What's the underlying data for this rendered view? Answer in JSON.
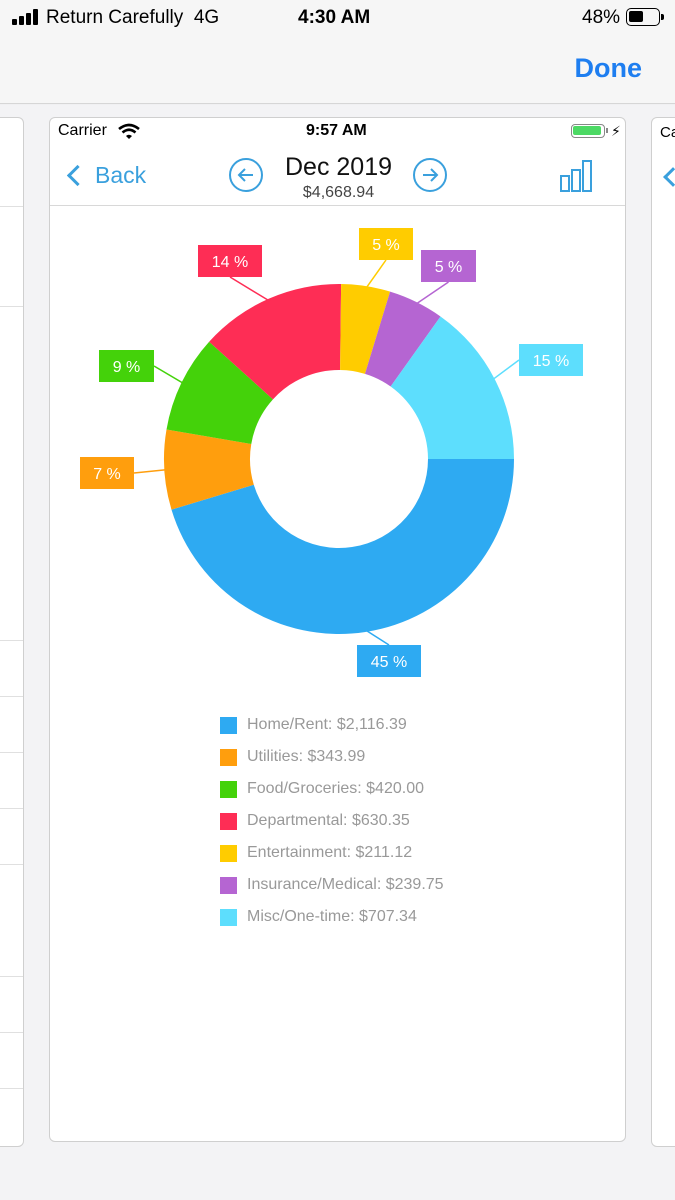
{
  "outer_status": {
    "carrier": "Return Carefully",
    "network": "4G",
    "time": "4:30 AM",
    "battery": "48%"
  },
  "outer_nav": {
    "done_label": "Done"
  },
  "peek_right": {
    "carrier": "Ca"
  },
  "inner_status": {
    "carrier": "Carrier",
    "time": "9:57 AM"
  },
  "inner_nav": {
    "back_label": "Back",
    "month": "Dec 2019",
    "total": "$4,668.94"
  },
  "icons": {
    "wifi": "wifi-icon",
    "prev": "arrow-left-circle-icon",
    "next": "arrow-right-circle-icon",
    "chart": "bar-chart-icon",
    "back": "chevron-left-icon"
  },
  "chart_data": {
    "type": "pie",
    "donut": true,
    "slices": [
      {
        "label": "Home/Rent",
        "amount": "$2,116.39",
        "value": 2116.39,
        "pct": "45 %",
        "color": "#2eaaf2"
      },
      {
        "label": "Utilities",
        "amount": "$343.99",
        "value": 343.99,
        "pct": "7 %",
        "color": "#ff9e0d"
      },
      {
        "label": "Food/Groceries",
        "amount": "$420.00",
        "value": 420.0,
        "pct": "9 %",
        "color": "#44d20a"
      },
      {
        "label": "Departmental",
        "amount": "$630.35",
        "value": 630.35,
        "pct": "14 %",
        "color": "#fe2d55"
      },
      {
        "label": "Entertainment",
        "amount": "$211.12",
        "value": 211.12,
        "pct": "5 %",
        "color": "#ffcc00"
      },
      {
        "label": "Insurance/Medical",
        "amount": "$239.75",
        "value": 239.75,
        "pct": "5 %",
        "color": "#b565d2"
      },
      {
        "label": "Misc/One-time",
        "amount": "$707.34",
        "value": 707.34,
        "pct": "15 %",
        "color": "#5ddefd"
      }
    ],
    "legend_position": "bottom"
  }
}
